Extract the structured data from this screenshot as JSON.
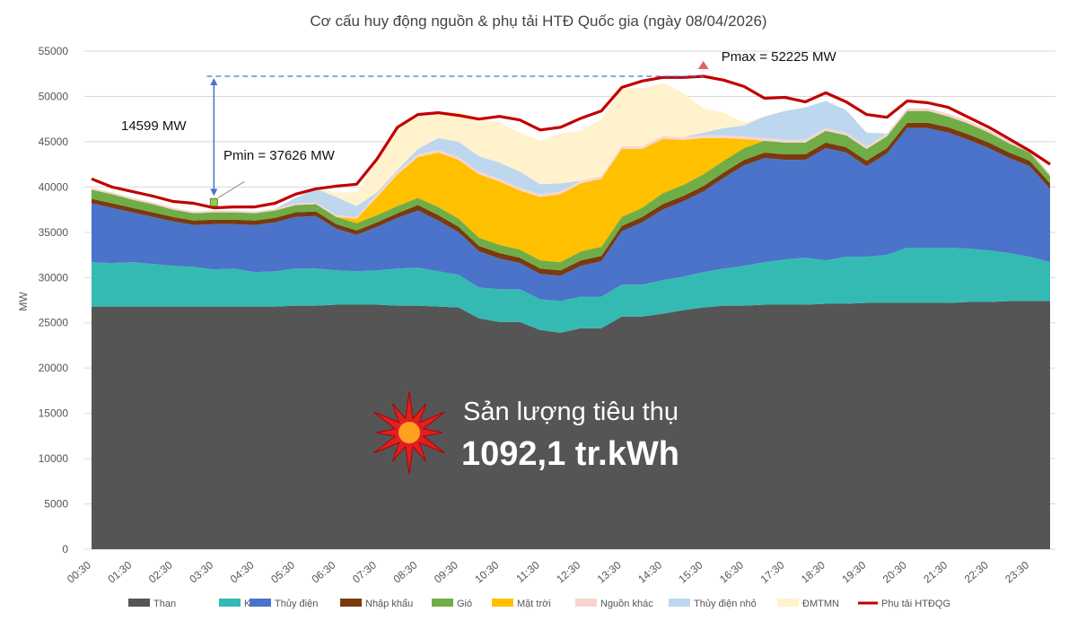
{
  "chart_data": {
    "type": "area",
    "title": "Cơ cấu huy động nguồn & phụ tải HTĐ Quốc gia (ngày 08/04/2026)",
    "ylabel": "MW",
    "ylim": [
      0,
      55000
    ],
    "yticks": [
      "0",
      "5000",
      "10000",
      "15000",
      "20000",
      "25000",
      "30000",
      "35000",
      "40000",
      "45000",
      "50000",
      "55000"
    ],
    "x_tick_labels": [
      "00:30",
      "01:30",
      "02:30",
      "03:30",
      "04:30",
      "05:30",
      "06:30",
      "07:30",
      "08:30",
      "09:30",
      "10:30",
      "11:30",
      "12:30",
      "13:30",
      "14:30",
      "15:30",
      "16:30",
      "17:30",
      "18:30",
      "19:30",
      "20:30",
      "21:30",
      "22:30",
      "23:30"
    ],
    "x": [
      "00:30",
      "01:00",
      "01:30",
      "02:00",
      "02:30",
      "03:00",
      "03:30",
      "04:00",
      "04:30",
      "05:00",
      "05:30",
      "06:00",
      "06:30",
      "07:00",
      "07:30",
      "08:00",
      "08:30",
      "09:00",
      "09:30",
      "10:00",
      "10:30",
      "11:00",
      "11:30",
      "12:00",
      "12:30",
      "13:00",
      "13:30",
      "14:00",
      "14:30",
      "15:00",
      "15:30",
      "16:00",
      "16:30",
      "17:00",
      "17:30",
      "18:00",
      "18:30",
      "19:00",
      "19:30",
      "20:00",
      "20:30",
      "21:00",
      "21:30",
      "22:00",
      "22:30",
      "23:00",
      "23:30",
      "24:00"
    ],
    "series": [
      {
        "name": "Than",
        "color": "#555555",
        "values": [
          26800,
          26800,
          26800,
          26800,
          26800,
          26800,
          26800,
          26800,
          26800,
          26800,
          26900,
          26900,
          27000,
          27000,
          27000,
          26900,
          26900,
          26800,
          26700,
          25500,
          25100,
          25100,
          24200,
          23900,
          24400,
          24400,
          25700,
          25700,
          26000,
          26400,
          26700,
          26900,
          26900,
          27000,
          27000,
          27000,
          27100,
          27100,
          27200,
          27200,
          27200,
          27200,
          27200,
          27300,
          27300,
          27400,
          27400,
          27400
        ]
      },
      {
        "name": "Khí",
        "color": "#35BAB3",
        "values": [
          4900,
          4800,
          4900,
          4700,
          4500,
          4400,
          4100,
          4200,
          3800,
          3900,
          4100,
          4100,
          3800,
          3700,
          3800,
          4100,
          4200,
          3900,
          3600,
          3400,
          3600,
          3600,
          3400,
          3500,
          3500,
          3500,
          3500,
          3500,
          3700,
          3700,
          3900,
          4100,
          4400,
          4700,
          5000,
          5200,
          4800,
          5200,
          5100,
          5300,
          6100,
          6100,
          6100,
          5900,
          5700,
          5300,
          4900,
          4300
        ]
      },
      {
        "name": "Thủy điện",
        "color": "#4A73C9",
        "values": [
          6500,
          6100,
          5500,
          5200,
          4900,
          4600,
          5000,
          4900,
          5200,
          5400,
          5700,
          5800,
          4600,
          4000,
          4800,
          5600,
          6300,
          5600,
          4700,
          4000,
          3400,
          2900,
          2800,
          2800,
          3400,
          3900,
          5900,
          6900,
          7800,
          8300,
          8900,
          10000,
          11100,
          11500,
          11000,
          10800,
          12400,
          11500,
          10000,
          11200,
          13200,
          13200,
          12700,
          12000,
          11300,
          10500,
          10000,
          8100
        ]
      },
      {
        "name": "Nhập khẩu",
        "color": "#7A3A10",
        "values": [
          500,
          500,
          500,
          500,
          500,
          500,
          500,
          500,
          500,
          500,
          500,
          500,
          500,
          500,
          500,
          500,
          600,
          600,
          600,
          600,
          600,
          600,
          600,
          600,
          600,
          600,
          600,
          600,
          600,
          600,
          600,
          600,
          600,
          600,
          600,
          600,
          600,
          600,
          600,
          600,
          600,
          600,
          600,
          600,
          600,
          600,
          600,
          600
        ]
      },
      {
        "name": "Gió",
        "color": "#70AD47",
        "values": [
          1000,
          1000,
          900,
          900,
          800,
          800,
          800,
          800,
          800,
          800,
          800,
          800,
          800,
          800,
          800,
          800,
          800,
          900,
          900,
          900,
          900,
          900,
          900,
          900,
          1000,
          1000,
          1000,
          1000,
          1200,
          1200,
          1300,
          1300,
          1300,
          1300,
          1300,
          1300,
          1300,
          1300,
          1300,
          1300,
          1300,
          1300,
          1200,
          1200,
          1100,
          1000,
          900,
          800
        ]
      },
      {
        "name": "Mặt trời",
        "color": "#FFC000",
        "values": [
          0,
          0,
          0,
          0,
          0,
          0,
          0,
          0,
          0,
          0,
          0,
          0,
          0,
          500,
          2000,
          3500,
          4500,
          6000,
          6500,
          7000,
          7000,
          6500,
          7000,
          7500,
          7500,
          7500,
          7500,
          6500,
          6000,
          5000,
          4000,
          2500,
          1000,
          0,
          0,
          0,
          0,
          0,
          0,
          0,
          0,
          0,
          0,
          0,
          0,
          0,
          0,
          0
        ]
      },
      {
        "name": "Nguồn khác",
        "color": "#F8D5CC",
        "values": [
          200,
          200,
          200,
          200,
          200,
          200,
          200,
          200,
          200,
          200,
          200,
          200,
          200,
          200,
          300,
          300,
          300,
          300,
          300,
          300,
          300,
          300,
          300,
          300,
          300,
          300,
          300,
          300,
          300,
          300,
          300,
          300,
          300,
          300,
          300,
          300,
          300,
          300,
          300,
          300,
          300,
          300,
          300,
          300,
          300,
          300,
          300,
          300
        ]
      },
      {
        "name": "Thủy điện nhỏ",
        "color": "#BDD7EE",
        "values": [
          0,
          0,
          0,
          0,
          0,
          0,
          0,
          0,
          0,
          0,
          600,
          1500,
          2000,
          1200,
          200,
          200,
          600,
          1300,
          1700,
          1700,
          1800,
          1800,
          1100,
          900,
          0,
          0,
          0,
          0,
          0,
          0,
          300,
          800,
          1200,
          2400,
          3200,
          3600,
          3000,
          2500,
          1500,
          0,
          0,
          0,
          0,
          0,
          0,
          0,
          0,
          0
        ]
      },
      {
        "name": "ĐMTMN",
        "color": "#FFF2CC",
        "values": [
          0,
          0,
          0,
          0,
          0,
          0,
          0,
          0,
          0,
          0,
          0,
          0,
          500,
          1500,
          3500,
          4700,
          3500,
          2800,
          3300,
          4200,
          4400,
          4300,
          4800,
          5500,
          5500,
          6300,
          6500,
          6400,
          5900,
          4900,
          2700,
          1700,
          300,
          0,
          0,
          0,
          0,
          0,
          0,
          0,
          0,
          0,
          0,
          0,
          0,
          0,
          0,
          0
        ]
      }
    ],
    "load_line": {
      "name": "Phụ tải HTĐQG",
      "color": "#C00000",
      "values": [
        40900,
        40000,
        39500,
        39000,
        38400,
        38200,
        37700,
        37800,
        37800,
        38200,
        39200,
        39800,
        40100,
        40300,
        43100,
        46600,
        48000,
        48200,
        47900,
        47500,
        47800,
        47400,
        46300,
        46600,
        47600,
        48400,
        51000,
        51700,
        52100,
        52100,
        52225,
        51800,
        51100,
        49800,
        49900,
        49400,
        50400,
        49400,
        48000,
        47700,
        49500,
        49300,
        48800,
        47700,
        46600,
        45300,
        44000,
        42500
      ]
    },
    "legend": [
      "Than",
      "Khí",
      "Thủy điện",
      "Nhập khẩu",
      "Gió",
      "Mặt trời",
      "Nguồn khác",
      "Thủy điện nhỏ",
      "ĐMTMN",
      "Phụ tải HTĐQG"
    ],
    "legend_position": "bottom",
    "grid": true,
    "annotations": {
      "pmax_label": "Pmax = 52225 MW",
      "pmin_label": "Pmin = 37626 MW",
      "diff_label": "14599 MW",
      "consumption_caption": "Sản lượng tiêu thụ",
      "consumption_value": "1092,1 tr.kWh",
      "pmax_value": 52225,
      "pmin_value": 37626
    }
  }
}
